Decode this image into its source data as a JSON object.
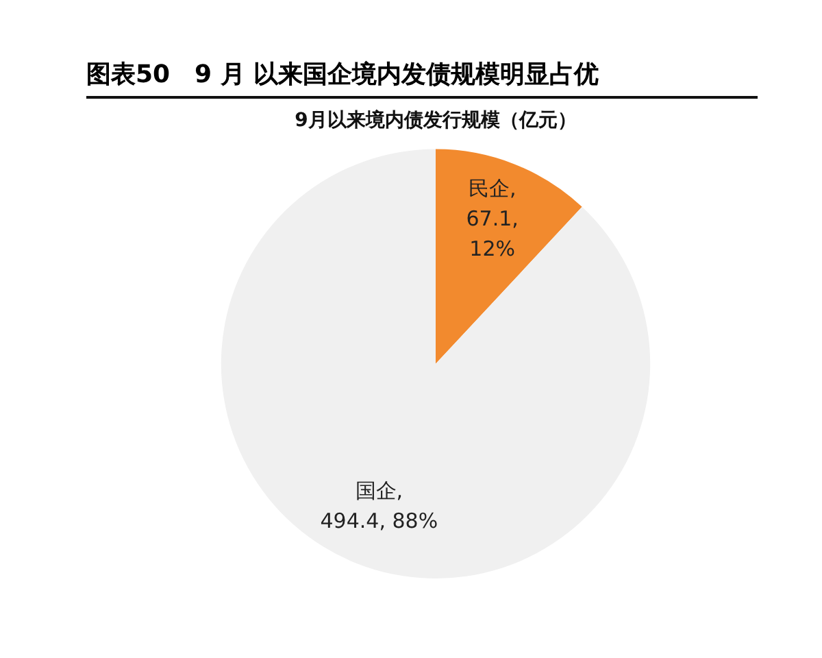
{
  "chart_data": {
    "type": "pie",
    "title": "图表50　9 月 以来国企境内发债规模明显占优",
    "subtitle": "9月以来境内债发行规模（亿元）",
    "categories": [
      "民企",
      "国企"
    ],
    "values": [
      67.1,
      494.4
    ],
    "colors": [
      "#f28a2e",
      "#f0f0f0"
    ],
    "value_labels": [
      ",\n67.1,\n12%",
      ",\n494.4, 88%"
    ],
    "legend": false
  }
}
